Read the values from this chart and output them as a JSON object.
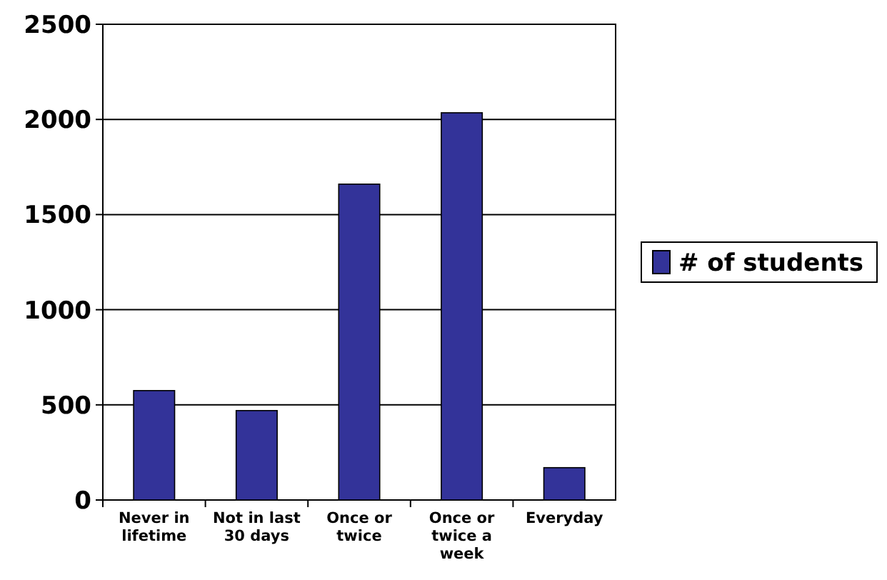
{
  "chart_data": {
    "type": "bar",
    "categories": [
      "Never in lifetime",
      "Not in last 30 days",
      "Once or twice",
      "Once or twice a week",
      "Everyday"
    ],
    "series": [
      {
        "name": "# of students",
        "color": "#333399",
        "values": [
          575,
          470,
          1660,
          2035,
          170
        ]
      }
    ],
    "ylim": [
      0,
      2500
    ],
    "yticks": [
      0,
      500,
      1000,
      1500,
      2000,
      2500
    ],
    "grid": "y",
    "legend": "right"
  }
}
